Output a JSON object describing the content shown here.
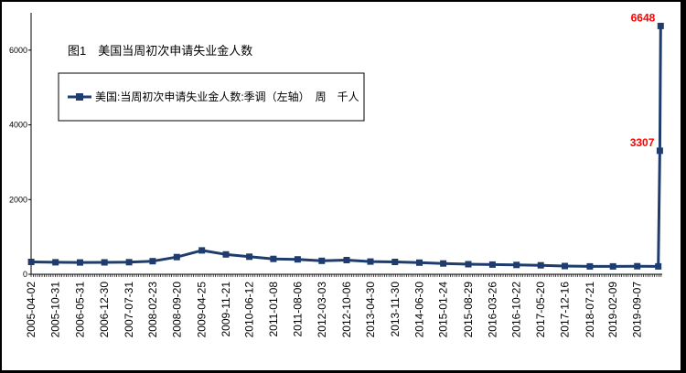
{
  "chart_data": {
    "type": "line",
    "title": "图1　美国当周初次申请失业金人数",
    "legend_position": "top-left",
    "ylim": [
      0,
      7000
    ],
    "y_ticks": [
      0,
      2000,
      4000,
      6000
    ],
    "x_tick_labels": [
      "2005-04-02",
      "2005-10-31",
      "2006-05-31",
      "2006-12-30",
      "2007-07-31",
      "2008-02-23",
      "2008-09-20",
      "2009-04-25",
      "2009-11-21",
      "2010-06-12",
      "2011-01-08",
      "2011-08-06",
      "2012-03-03",
      "2012-10-06",
      "2013-04-30",
      "2013-11-30",
      "2014-06-30",
      "2015-01-24",
      "2015-08-29",
      "2016-03-26",
      "2016-10-22",
      "2017-05-20",
      "2017-12-16",
      "2018-07-21",
      "2019-02-09",
      "2019-09-07"
    ],
    "series": [
      {
        "name": "美国:当周初次申请失业金人数:季调（左轴）　周　千人",
        "color": "#1f3c6e",
        "marker": "square",
        "x": [
          "2005-04-02",
          "2005-10-31",
          "2006-05-31",
          "2006-12-30",
          "2007-07-31",
          "2008-02-23",
          "2008-09-20",
          "2009-04-25",
          "2009-11-21",
          "2010-06-12",
          "2011-01-08",
          "2011-08-06",
          "2012-03-03",
          "2012-10-06",
          "2013-04-30",
          "2013-11-30",
          "2014-06-30",
          "2015-01-24",
          "2015-08-29",
          "2016-03-26",
          "2016-10-22",
          "2017-05-20",
          "2017-12-16",
          "2018-07-21",
          "2019-02-09",
          "2019-09-07",
          "2020-03-07",
          "2020-03-21",
          "2020-03-28"
        ],
        "values": [
          330,
          320,
          315,
          318,
          322,
          350,
          460,
          640,
          530,
          470,
          410,
          400,
          360,
          380,
          340,
          330,
          310,
          290,
          270,
          260,
          250,
          240,
          220,
          210,
          210,
          215,
          211,
          3307,
          6648
        ]
      }
    ],
    "annotations": [
      {
        "x": "2020-03-21",
        "value": 3307,
        "label": "3307"
      },
      {
        "x": "2020-03-28",
        "value": 6648,
        "label": "6648"
      }
    ]
  }
}
